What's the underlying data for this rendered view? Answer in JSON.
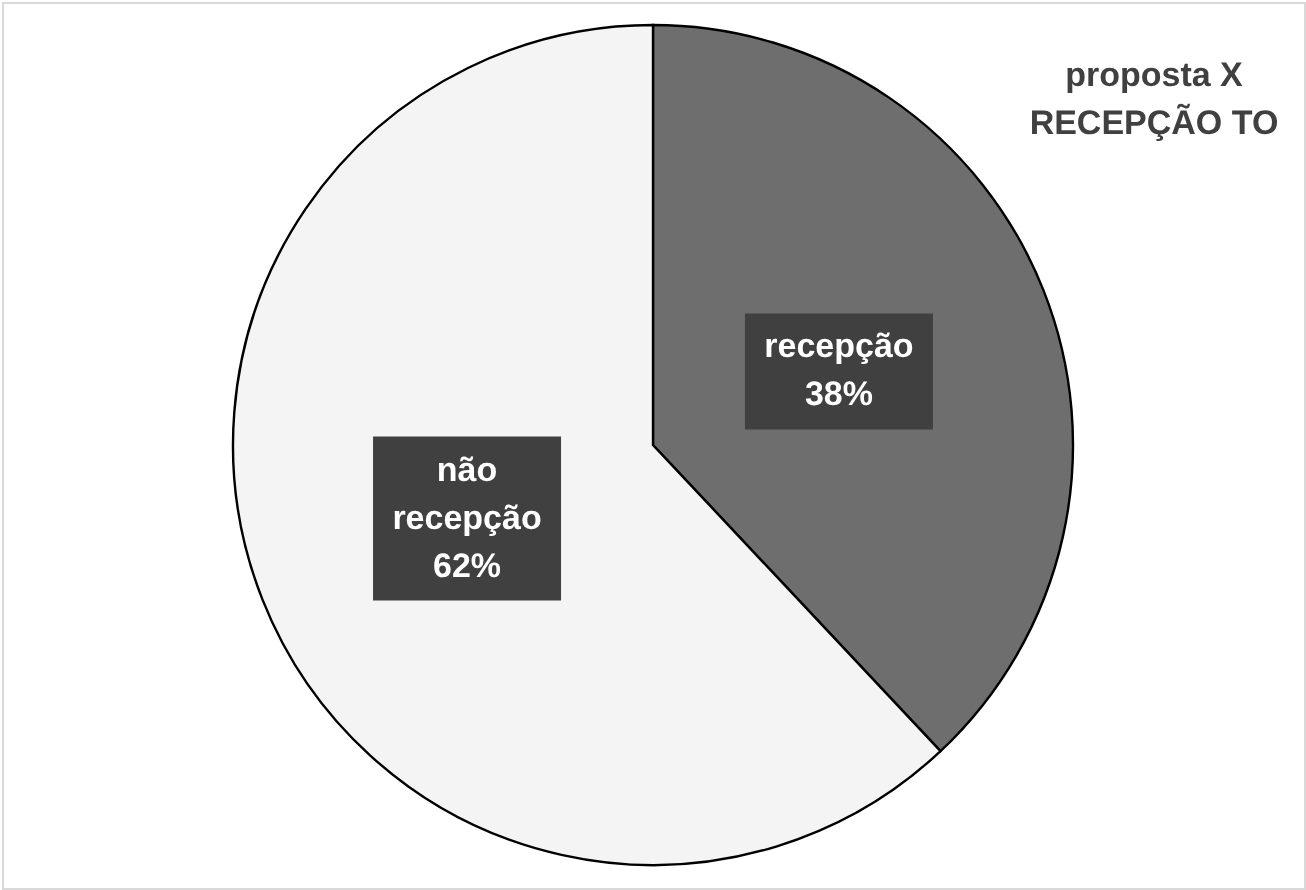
{
  "chart_data": {
    "type": "pie",
    "title": "proposta X\nRECEPÇÃO TO",
    "categories": [
      "recepção",
      "não recepção"
    ],
    "values": [
      38,
      62
    ],
    "value_labels": [
      "38%",
      "62%"
    ],
    "colors": [
      "#6e6e6e",
      "#f4f4f4"
    ],
    "data_labels": true,
    "legend": false
  }
}
